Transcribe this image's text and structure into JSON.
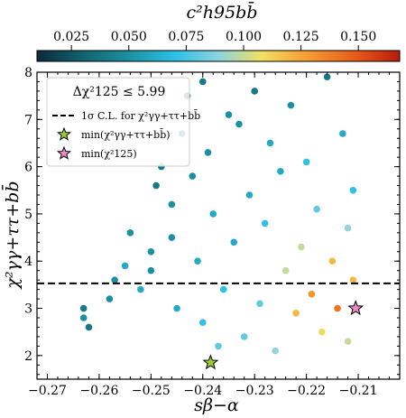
{
  "chart_data": {
    "type": "scatter",
    "xlabel": "sβ−α",
    "ylabel": "χ²γγ+ττ+bb̄",
    "colorbar_label": "c²h95bb̄",
    "xlim": [
      -0.272,
      -0.202
    ],
    "ylim": [
      1.5,
      8.0
    ],
    "xticks": [
      "−0.27",
      "−0.26",
      "−0.25",
      "−0.24",
      "−0.23",
      "−0.22",
      "−0.21"
    ],
    "yticks": [
      "2",
      "3",
      "4",
      "5",
      "6",
      "7",
      "8"
    ],
    "colorbar": {
      "range": [
        0.01,
        0.168
      ],
      "ticks": [
        "0.025",
        "0.050",
        "0.075",
        "0.100",
        "0.125",
        "0.150"
      ],
      "colormap": [
        "#0c2a3c",
        "#10606c",
        "#1a90a0",
        "#2cc0e6",
        "#8ad4e0",
        "#f2e060",
        "#f59a30",
        "#e85a18",
        "#b81a0a"
      ]
    },
    "hline": {
      "y": 3.53,
      "style": "dashed",
      "label": "1σ C.L. for χ²γγ+ττ+bb̄"
    },
    "legend": {
      "title": "Δχ²125 ≤ 5.99",
      "position": "top-left",
      "entries": [
        {
          "label": "1σ C.L. for χ²γγ+ττ+bb̄",
          "marker": "dashed-line"
        },
        {
          "label": "min(χ²γγ+ττ+bb̄)",
          "marker": "star",
          "color": "#9acd32"
        },
        {
          "label": "min(χ²125)",
          "marker": "star",
          "color": "#f08ac8"
        }
      ]
    },
    "special_points": [
      {
        "name": "min-chi2-gg-tt-bb",
        "x": -0.2385,
        "y": 1.85,
        "color": "#9acd32"
      },
      {
        "name": "min-chi2-125",
        "x": -0.2105,
        "y": 3.0,
        "color": "#f08ac8"
      }
    ],
    "series": [
      {
        "points": [
          [
            -0.263,
            3.0,
            0.04
          ],
          [
            -0.263,
            2.8,
            0.05
          ],
          [
            -0.262,
            2.6,
            0.04
          ],
          [
            -0.258,
            3.2,
            0.05
          ],
          [
            -0.257,
            3.6,
            0.05
          ],
          [
            -0.255,
            3.9,
            0.06
          ],
          [
            -0.254,
            4.6,
            0.05
          ],
          [
            -0.252,
            3.4,
            0.06
          ],
          [
            -0.25,
            3.8,
            0.05
          ],
          [
            -0.25,
            4.2,
            0.05
          ],
          [
            -0.249,
            5.6,
            0.04
          ],
          [
            -0.248,
            6.0,
            0.04
          ],
          [
            -0.246,
            5.2,
            0.05
          ],
          [
            -0.246,
            4.5,
            0.05
          ],
          [
            -0.245,
            3.0,
            0.06
          ],
          [
            -0.244,
            6.7,
            0.04
          ],
          [
            -0.243,
            7.5,
            0.03
          ],
          [
            -0.242,
            5.8,
            0.05
          ],
          [
            -0.241,
            4.0,
            0.06
          ],
          [
            -0.24,
            2.7,
            0.07
          ],
          [
            -0.24,
            7.8,
            0.04
          ],
          [
            -0.239,
            6.3,
            0.05
          ],
          [
            -0.238,
            5.0,
            0.06
          ],
          [
            -0.237,
            2.2,
            0.08
          ],
          [
            -0.236,
            3.4,
            0.07
          ],
          [
            -0.235,
            7.1,
            0.05
          ],
          [
            -0.234,
            4.4,
            0.06
          ],
          [
            -0.233,
            6.9,
            0.05
          ],
          [
            -0.232,
            2.4,
            0.08
          ],
          [
            -0.231,
            5.4,
            0.06
          ],
          [
            -0.23,
            7.6,
            0.04
          ],
          [
            -0.229,
            3.1,
            0.08
          ],
          [
            -0.228,
            4.8,
            0.07
          ],
          [
            -0.227,
            6.5,
            0.06
          ],
          [
            -0.226,
            2.1,
            0.09
          ],
          [
            -0.225,
            5.9,
            0.06
          ],
          [
            -0.224,
            3.8,
            0.1
          ],
          [
            -0.223,
            7.3,
            0.05
          ],
          [
            -0.222,
            2.9,
            0.12
          ],
          [
            -0.221,
            4.3,
            0.1
          ],
          [
            -0.22,
            6.1,
            0.07
          ],
          [
            -0.219,
            3.3,
            0.13
          ],
          [
            -0.218,
            5.1,
            0.08
          ],
          [
            -0.217,
            2.5,
            0.11
          ],
          [
            -0.216,
            7.9,
            0.04
          ],
          [
            -0.215,
            4.0,
            0.12
          ],
          [
            -0.214,
            3.0,
            0.14
          ],
          [
            -0.213,
            6.7,
            0.06
          ],
          [
            -0.212,
            2.3,
            0.1
          ],
          [
            -0.211,
            3.6,
            0.12
          ],
          [
            -0.211,
            5.5,
            0.07
          ],
          [
            -0.212,
            4.7,
            0.09
          ]
        ]
      }
    ]
  }
}
